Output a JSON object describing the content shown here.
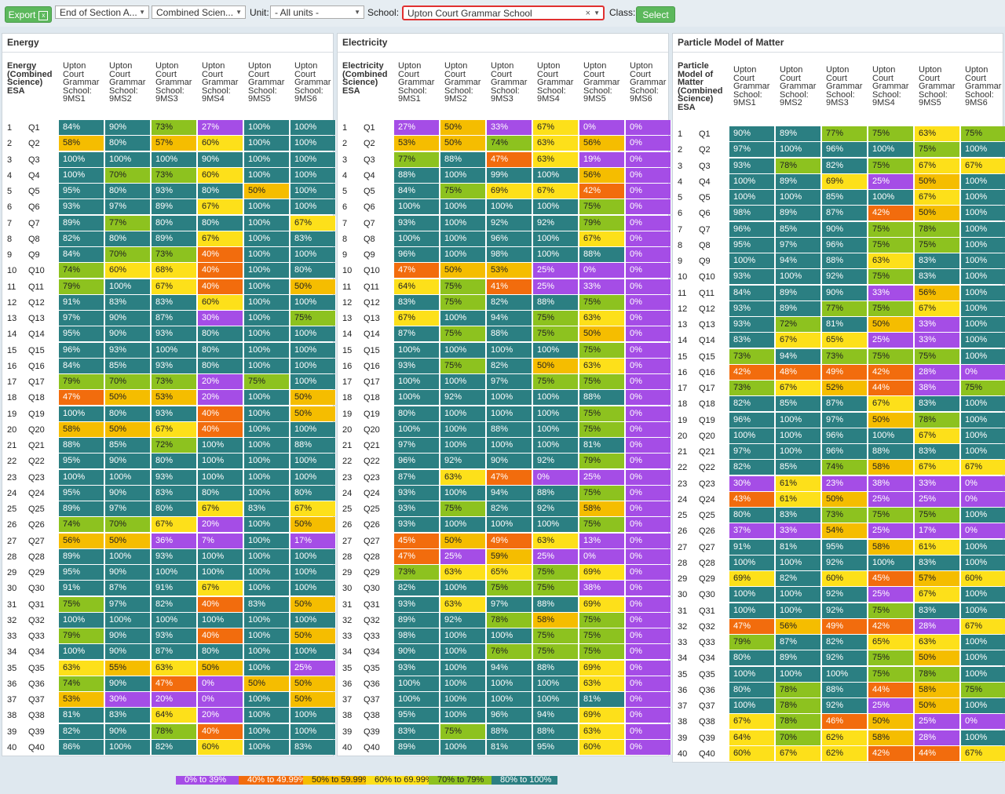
{
  "toolbar": {
    "export_label": "Export",
    "export_icon": "excel-icon",
    "assessment_value": "End of Section A...",
    "subject_value": "Combined Scien...",
    "unit_label": "Unit:",
    "unit_value": "- All units -",
    "school_label": "School:",
    "school_value": "Upton Court Grammar School",
    "class_label": "Class:",
    "select_label": "Select"
  },
  "colors": {
    "teal": "#2b7f82",
    "green": "#8dc21f",
    "yellow": "#fde01a",
    "amber": "#f5bd00",
    "orange": "#f26c0d",
    "purple": "#a54de6",
    "selected_border": "#e03030"
  },
  "legend": [
    {
      "label": "0% to 39%",
      "color": "#a54de6"
    },
    {
      "label": "40% to 49.99%",
      "color": "#f26c0d"
    },
    {
      "label": "50% to 59.99%",
      "color": "#f5bd00"
    },
    {
      "label": "60% to 69.99%",
      "color": "#fde01a"
    },
    {
      "label": "70% to 79%",
      "color": "#8dc21f"
    },
    {
      "label": "80% to 100%",
      "color": "#2b7f82"
    }
  ],
  "panels": [
    {
      "title": "Energy",
      "first_header": "Energy (Combined Science) ESA",
      "class_headers": [
        "Upton Court Grammar School: 9MS1",
        "Upton Court Grammar School: 9MS2",
        "Upton Court Grammar School: 9MS3",
        "Upton Court Grammar School: 9MS4",
        "Upton Court Grammar School: 9MS5",
        "Upton Court Grammar School: 9MS6"
      ],
      "rows": [
        [
          "84%",
          "90%",
          "73%",
          "27%",
          "100%",
          "100%"
        ],
        [
          "58%",
          "80%",
          "57%",
          "60%",
          "100%",
          "100%"
        ],
        [
          "100%",
          "100%",
          "100%",
          "90%",
          "100%",
          "100%"
        ],
        [
          "100%",
          "70%",
          "73%",
          "60%",
          "100%",
          "100%"
        ],
        [
          "95%",
          "80%",
          "93%",
          "80%",
          "50%",
          "100%"
        ],
        [
          "93%",
          "97%",
          "89%",
          "67%",
          "100%",
          "100%"
        ],
        [
          "89%",
          "77%",
          "80%",
          "80%",
          "100%",
          "67%"
        ],
        [
          "82%",
          "80%",
          "89%",
          "67%",
          "100%",
          "83%"
        ],
        [
          "84%",
          "70%",
          "73%",
          "40%",
          "100%",
          "100%"
        ],
        [
          "74%",
          "60%",
          "68%",
          "40%",
          "100%",
          "80%"
        ],
        [
          "79%",
          "100%",
          "67%",
          "40%",
          "100%",
          "50%"
        ],
        [
          "91%",
          "83%",
          "83%",
          "60%",
          "100%",
          "100%"
        ],
        [
          "97%",
          "90%",
          "87%",
          "30%",
          "100%",
          "75%"
        ],
        [
          "95%",
          "90%",
          "93%",
          "80%",
          "100%",
          "100%"
        ],
        [
          "96%",
          "93%",
          "100%",
          "80%",
          "100%",
          "100%"
        ],
        [
          "84%",
          "85%",
          "93%",
          "80%",
          "100%",
          "100%"
        ],
        [
          "79%",
          "70%",
          "73%",
          "20%",
          "75%",
          "100%"
        ],
        [
          "47%",
          "50%",
          "53%",
          "20%",
          "100%",
          "50%"
        ],
        [
          "100%",
          "80%",
          "93%",
          "40%",
          "100%",
          "50%"
        ],
        [
          "58%",
          "50%",
          "67%",
          "40%",
          "100%",
          "100%"
        ],
        [
          "88%",
          "85%",
          "72%",
          "100%",
          "100%",
          "88%"
        ],
        [
          "95%",
          "90%",
          "80%",
          "100%",
          "100%",
          "100%"
        ],
        [
          "100%",
          "100%",
          "93%",
          "100%",
          "100%",
          "100%"
        ],
        [
          "95%",
          "90%",
          "83%",
          "80%",
          "100%",
          "80%"
        ],
        [
          "89%",
          "97%",
          "80%",
          "67%",
          "83%",
          "67%"
        ],
        [
          "74%",
          "70%",
          "67%",
          "20%",
          "100%",
          "50%"
        ],
        [
          "56%",
          "50%",
          "36%",
          "7%",
          "100%",
          "17%"
        ],
        [
          "89%",
          "100%",
          "93%",
          "100%",
          "100%",
          "100%"
        ],
        [
          "95%",
          "90%",
          "100%",
          "100%",
          "100%",
          "100%"
        ],
        [
          "91%",
          "87%",
          "91%",
          "67%",
          "100%",
          "100%"
        ],
        [
          "75%",
          "97%",
          "82%",
          "40%",
          "83%",
          "50%"
        ],
        [
          "100%",
          "100%",
          "100%",
          "100%",
          "100%",
          "100%"
        ],
        [
          "79%",
          "90%",
          "93%",
          "40%",
          "100%",
          "50%"
        ],
        [
          "100%",
          "90%",
          "87%",
          "80%",
          "100%",
          "100%"
        ],
        [
          "63%",
          "55%",
          "63%",
          "50%",
          "100%",
          "25%"
        ],
        [
          "74%",
          "90%",
          "47%",
          "0%",
          "50%",
          "50%"
        ],
        [
          "53%",
          "30%",
          "20%",
          "0%",
          "100%",
          "50%"
        ],
        [
          "81%",
          "83%",
          "64%",
          "20%",
          "100%",
          "100%"
        ],
        [
          "82%",
          "90%",
          "78%",
          "40%",
          "100%",
          "100%"
        ],
        [
          "86%",
          "100%",
          "82%",
          "60%",
          "100%",
          "83%"
        ]
      ]
    },
    {
      "title": "Electricity",
      "first_header": "Electricity (Combined Science) ESA",
      "class_headers": [
        "Upton Court Grammar School: 9MS1",
        "Upton Court Grammar School: 9MS2",
        "Upton Court Grammar School: 9MS3",
        "Upton Court Grammar School: 9MS4",
        "Upton Court Grammar School: 9MS5",
        "Upton Court Grammar School: 9MS6"
      ],
      "rows": [
        [
          "27%",
          "50%",
          "33%",
          "67%",
          "0%",
          "0%"
        ],
        [
          "53%",
          "50%",
          "74%",
          "63%",
          "56%",
          "0%"
        ],
        [
          "77%",
          "88%",
          "47%",
          "63%",
          "19%",
          "0%"
        ],
        [
          "88%",
          "100%",
          "99%",
          "100%",
          "56%",
          "0%"
        ],
        [
          "84%",
          "75%",
          "69%",
          "67%",
          "42%",
          "0%"
        ],
        [
          "100%",
          "100%",
          "100%",
          "100%",
          "75%",
          "0%"
        ],
        [
          "93%",
          "100%",
          "92%",
          "92%",
          "79%",
          "0%"
        ],
        [
          "100%",
          "100%",
          "96%",
          "100%",
          "67%",
          "0%"
        ],
        [
          "96%",
          "100%",
          "98%",
          "100%",
          "88%",
          "0%"
        ],
        [
          "47%",
          "50%",
          "53%",
          "25%",
          "0%",
          "0%"
        ],
        [
          "64%",
          "75%",
          "41%",
          "25%",
          "33%",
          "0%"
        ],
        [
          "83%",
          "75%",
          "82%",
          "88%",
          "75%",
          "0%"
        ],
        [
          "67%",
          "100%",
          "94%",
          "75%",
          "63%",
          "0%"
        ],
        [
          "87%",
          "75%",
          "88%",
          "75%",
          "50%",
          "0%"
        ],
        [
          "100%",
          "100%",
          "100%",
          "100%",
          "75%",
          "0%"
        ],
        [
          "93%",
          "75%",
          "82%",
          "50%",
          "63%",
          "0%"
        ],
        [
          "100%",
          "100%",
          "97%",
          "75%",
          "75%",
          "0%"
        ],
        [
          "100%",
          "92%",
          "100%",
          "100%",
          "88%",
          "0%"
        ],
        [
          "80%",
          "100%",
          "100%",
          "100%",
          "75%",
          "0%"
        ],
        [
          "100%",
          "100%",
          "88%",
          "100%",
          "75%",
          "0%"
        ],
        [
          "97%",
          "100%",
          "100%",
          "100%",
          "81%",
          "0%"
        ],
        [
          "96%",
          "92%",
          "90%",
          "92%",
          "79%",
          "0%"
        ],
        [
          "87%",
          "63%",
          "47%",
          "0%",
          "25%",
          "0%"
        ],
        [
          "93%",
          "100%",
          "94%",
          "88%",
          "75%",
          "0%"
        ],
        [
          "93%",
          "75%",
          "82%",
          "92%",
          "58%",
          "0%"
        ],
        [
          "93%",
          "100%",
          "100%",
          "100%",
          "75%",
          "0%"
        ],
        [
          "45%",
          "50%",
          "49%",
          "63%",
          "13%",
          "0%"
        ],
        [
          "47%",
          "25%",
          "59%",
          "25%",
          "0%",
          "0%"
        ],
        [
          "73%",
          "63%",
          "65%",
          "75%",
          "69%",
          "0%"
        ],
        [
          "82%",
          "100%",
          "75%",
          "75%",
          "38%",
          "0%"
        ],
        [
          "93%",
          "63%",
          "97%",
          "88%",
          "69%",
          "0%"
        ],
        [
          "89%",
          "92%",
          "78%",
          "58%",
          "75%",
          "0%"
        ],
        [
          "98%",
          "100%",
          "100%",
          "75%",
          "75%",
          "0%"
        ],
        [
          "90%",
          "100%",
          "76%",
          "75%",
          "75%",
          "0%"
        ],
        [
          "93%",
          "100%",
          "94%",
          "88%",
          "69%",
          "0%"
        ],
        [
          "100%",
          "100%",
          "100%",
          "100%",
          "63%",
          "0%"
        ],
        [
          "100%",
          "100%",
          "100%",
          "100%",
          "81%",
          "0%"
        ],
        [
          "95%",
          "100%",
          "96%",
          "94%",
          "69%",
          "0%"
        ],
        [
          "83%",
          "75%",
          "88%",
          "88%",
          "63%",
          "0%"
        ],
        [
          "89%",
          "100%",
          "81%",
          "95%",
          "60%",
          "0%"
        ]
      ]
    },
    {
      "title": "Particle Model of Matter",
      "first_header": "Particle Model of Matter (Combined Science) ESA",
      "class_headers": [
        "Upton Court Grammar School: 9MS1",
        "Upton Court Grammar School: 9MS2",
        "Upton Court Grammar School: 9MS3",
        "Upton Court Grammar School: 9MS4",
        "Upton Court Grammar School: 9MS5",
        "Upton Court Grammar School: 9MS6"
      ],
      "rows": [
        [
          "90%",
          "89%",
          "77%",
          "75%",
          "63%",
          "75%"
        ],
        [
          "97%",
          "100%",
          "96%",
          "100%",
          "75%",
          "100%"
        ],
        [
          "93%",
          "78%",
          "82%",
          "75%",
          "67%",
          "67%"
        ],
        [
          "100%",
          "89%",
          "69%",
          "25%",
          "50%",
          "100%"
        ],
        [
          "100%",
          "100%",
          "85%",
          "100%",
          "67%",
          "100%"
        ],
        [
          "98%",
          "89%",
          "87%",
          "42%",
          "50%",
          "100%"
        ],
        [
          "96%",
          "85%",
          "90%",
          "75%",
          "78%",
          "100%"
        ],
        [
          "95%",
          "97%",
          "96%",
          "75%",
          "75%",
          "100%"
        ],
        [
          "100%",
          "94%",
          "88%",
          "63%",
          "83%",
          "100%"
        ],
        [
          "93%",
          "100%",
          "92%",
          "75%",
          "83%",
          "100%"
        ],
        [
          "84%",
          "89%",
          "90%",
          "33%",
          "56%",
          "100%"
        ],
        [
          "93%",
          "89%",
          "77%",
          "75%",
          "67%",
          "100%"
        ],
        [
          "93%",
          "72%",
          "81%",
          "50%",
          "33%",
          "100%"
        ],
        [
          "83%",
          "67%",
          "65%",
          "25%",
          "33%",
          "100%"
        ],
        [
          "73%",
          "94%",
          "73%",
          "75%",
          "75%",
          "100%"
        ],
        [
          "42%",
          "48%",
          "49%",
          "42%",
          "28%",
          "0%"
        ],
        [
          "73%",
          "67%",
          "52%",
          "44%",
          "38%",
          "75%"
        ],
        [
          "82%",
          "85%",
          "87%",
          "67%",
          "83%",
          "100%"
        ],
        [
          "96%",
          "100%",
          "97%",
          "50%",
          "78%",
          "100%"
        ],
        [
          "100%",
          "100%",
          "96%",
          "100%",
          "67%",
          "100%"
        ],
        [
          "97%",
          "100%",
          "96%",
          "88%",
          "83%",
          "100%"
        ],
        [
          "82%",
          "85%",
          "74%",
          "58%",
          "67%",
          "67%"
        ],
        [
          "30%",
          "61%",
          "23%",
          "38%",
          "33%",
          "0%"
        ],
        [
          "43%",
          "61%",
          "50%",
          "25%",
          "25%",
          "0%"
        ],
        [
          "80%",
          "83%",
          "73%",
          "75%",
          "75%",
          "100%"
        ],
        [
          "37%",
          "33%",
          "54%",
          "25%",
          "17%",
          "0%"
        ],
        [
          "91%",
          "81%",
          "95%",
          "58%",
          "61%",
          "100%"
        ],
        [
          "100%",
          "100%",
          "92%",
          "100%",
          "83%",
          "100%"
        ],
        [
          "69%",
          "82%",
          "60%",
          "45%",
          "57%",
          "60%"
        ],
        [
          "100%",
          "100%",
          "92%",
          "25%",
          "67%",
          "100%"
        ],
        [
          "100%",
          "100%",
          "92%",
          "75%",
          "83%",
          "100%"
        ],
        [
          "47%",
          "56%",
          "49%",
          "42%",
          "28%",
          "67%"
        ],
        [
          "79%",
          "87%",
          "82%",
          "65%",
          "63%",
          "100%"
        ],
        [
          "80%",
          "89%",
          "92%",
          "75%",
          "50%",
          "100%"
        ],
        [
          "100%",
          "100%",
          "100%",
          "75%",
          "78%",
          "100%"
        ],
        [
          "80%",
          "78%",
          "88%",
          "44%",
          "58%",
          "75%"
        ],
        [
          "100%",
          "78%",
          "92%",
          "25%",
          "50%",
          "100%"
        ],
        [
          "67%",
          "78%",
          "46%",
          "50%",
          "25%",
          "0%"
        ],
        [
          "64%",
          "70%",
          "62%",
          "58%",
          "28%",
          "100%"
        ],
        [
          "60%",
          "67%",
          "62%",
          "42%",
          "44%",
          "67%"
        ]
      ]
    }
  ]
}
